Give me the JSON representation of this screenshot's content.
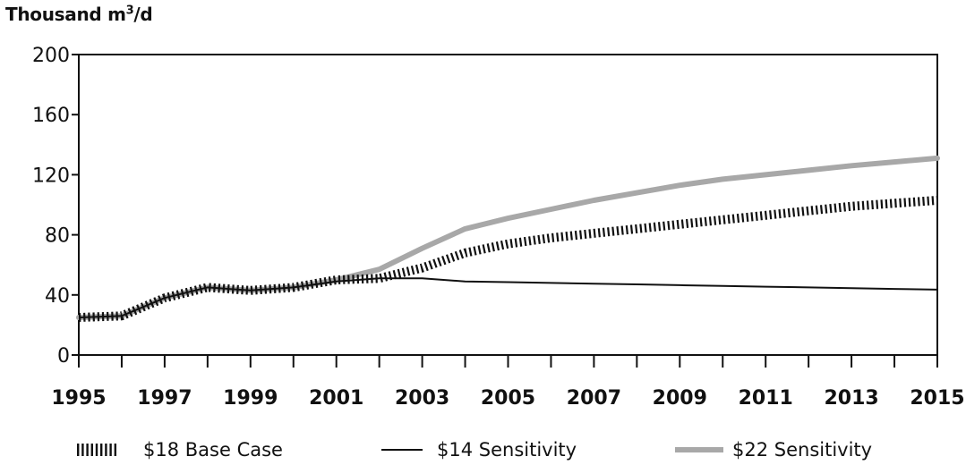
{
  "chart_data": {
    "type": "line",
    "ylabel": "Thousand m",
    "ylabel_sup": "3",
    "ylabel_suffix": "/d",
    "xlabel": "",
    "ylim": [
      0,
      200
    ],
    "yticks": [
      0,
      40,
      80,
      120,
      160,
      200
    ],
    "xlim": [
      1995,
      2015
    ],
    "xtick_labels": [
      "1995",
      "1997",
      "1999",
      "2001",
      "2003",
      "2005",
      "2007",
      "2009",
      "2011",
      "2013",
      "2015"
    ],
    "x": [
      1995,
      1996,
      1997,
      1998,
      1999,
      2000,
      2001,
      2002,
      2003,
      2004,
      2005,
      2006,
      2007,
      2008,
      2009,
      2010,
      2011,
      2012,
      2013,
      2014,
      2015
    ],
    "series": [
      {
        "name": "$18 Base Case",
        "style": "hatched",
        "color": "#111111",
        "values": [
          25,
          26,
          38,
          45,
          43,
          45,
          50,
          51,
          58,
          68,
          74,
          78,
          81,
          84,
          87,
          90,
          93,
          96,
          99,
          101,
          103
        ]
      },
      {
        "name": "$14 Sensitivity",
        "style": "solid-thin",
        "color": "#111111",
        "values": [
          25,
          26,
          38,
          45,
          43,
          45,
          49,
          51,
          51,
          49,
          48.5,
          48,
          47.5,
          47,
          46.5,
          46,
          45.5,
          45,
          44.5,
          44,
          43.5
        ]
      },
      {
        "name": "$22 Sensitivity",
        "style": "solid-thick",
        "color": "#a8a8a8",
        "values": [
          25,
          26,
          38,
          45,
          43,
          45,
          50,
          57,
          71,
          84,
          91,
          97,
          103,
          108,
          113,
          117,
          120,
          123,
          126,
          128.5,
          131
        ]
      }
    ],
    "legend_position": "bottom",
    "grid": false
  }
}
